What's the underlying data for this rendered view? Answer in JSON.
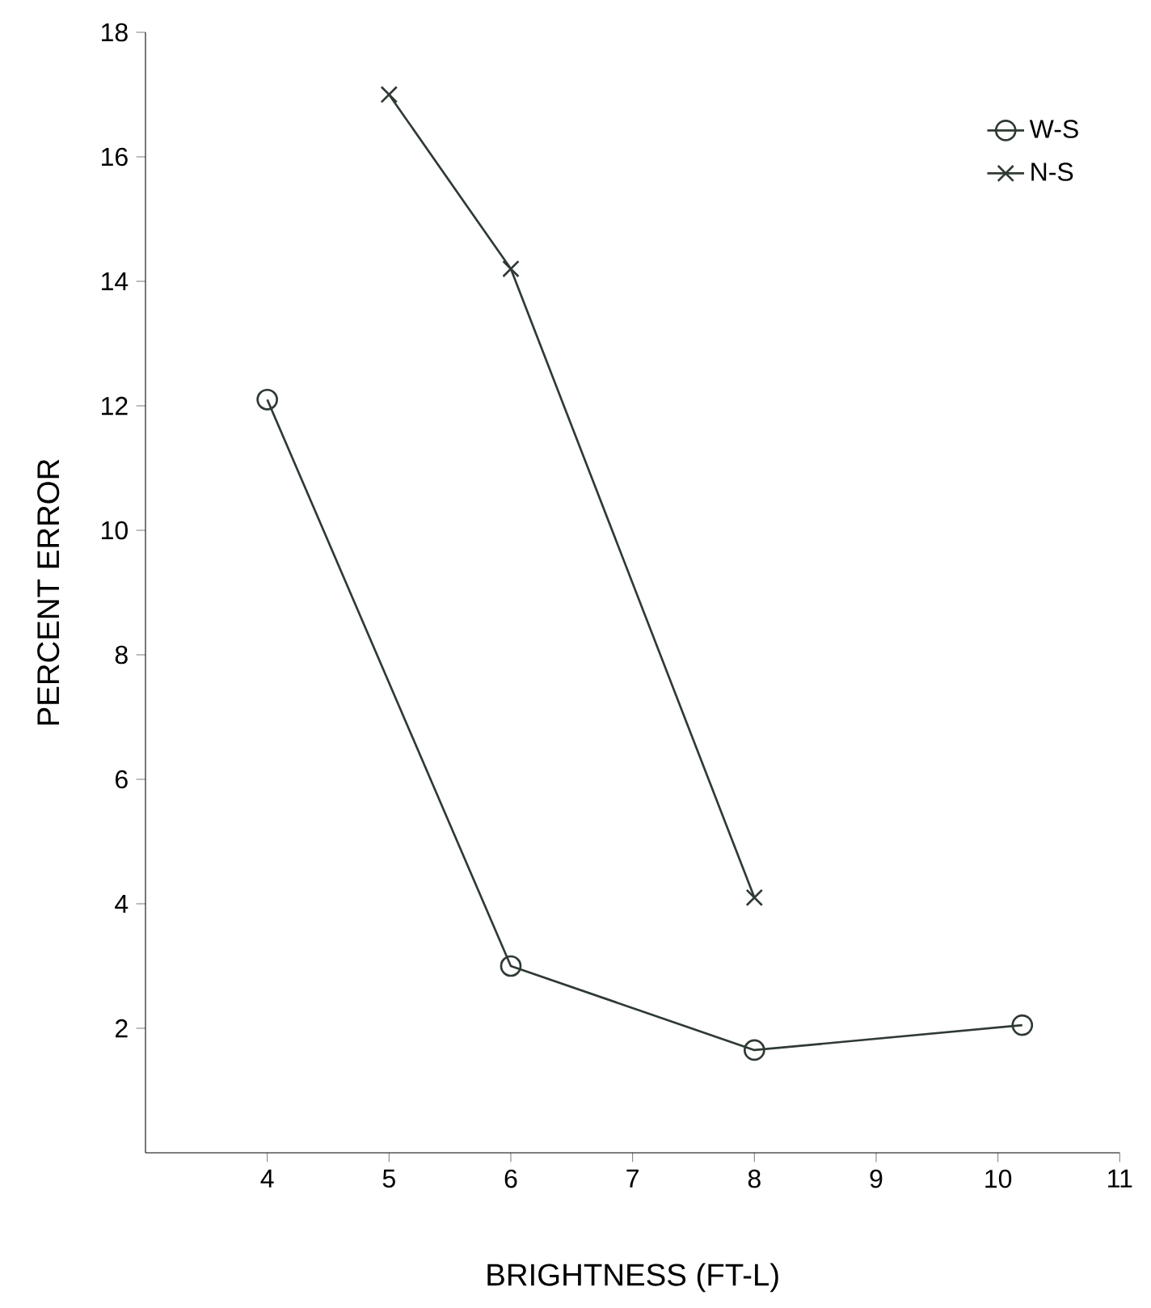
{
  "chart_data": {
    "type": "line",
    "xlabel": "BRIGHTNESS (FT-L)",
    "ylabel": "PERCENT ERROR",
    "xlim": [
      3,
      11
    ],
    "xticks": [
      4,
      5,
      6,
      7,
      8,
      9,
      10,
      11
    ],
    "ylim": [
      0,
      18
    ],
    "yticks": [
      2,
      4,
      6,
      8,
      10,
      12,
      14,
      16,
      18
    ],
    "grid": false,
    "legend": "top right",
    "line_style": "solid",
    "series": [
      {
        "name": "W-S",
        "color": "#2f3a33",
        "marker": "circle",
        "x": [
          4,
          6,
          8,
          10.2
        ],
        "values": [
          12.1,
          3.0,
          1.65,
          2.05
        ]
      },
      {
        "name": "N-S",
        "color": "#2f3a33",
        "marker": "cross",
        "x": [
          5,
          6,
          8
        ],
        "values": [
          17.0,
          14.2,
          4.1
        ]
      }
    ]
  }
}
